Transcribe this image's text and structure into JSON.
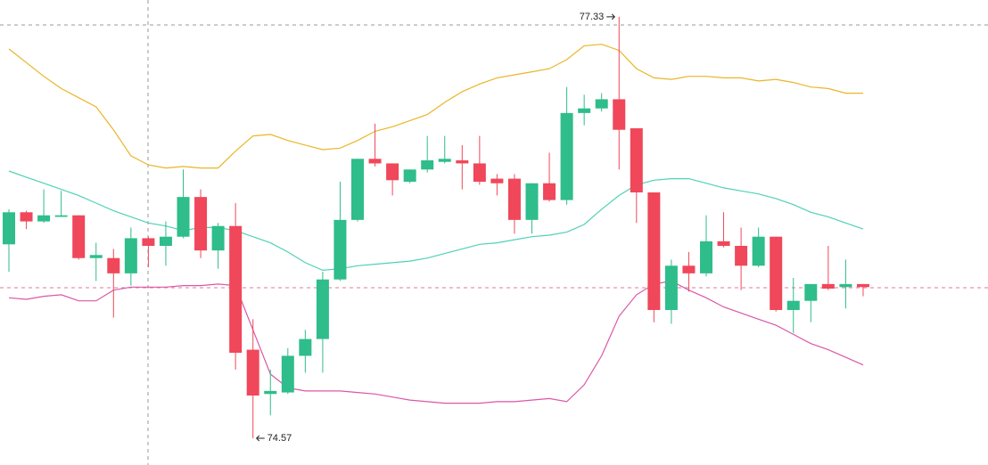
{
  "chart_data": {
    "type": "candlestick",
    "ylim": [
      74.395,
      77.44
    ],
    "up_color": "#2ebd8b",
    "down_color": "#f0475a",
    "open": [
      75.84,
      76.05,
      75.99,
      76.02,
      76.03,
      75.75,
      75.75,
      75.65,
      75.88,
      75.83,
      75.89,
      76.15,
      75.8,
      75.96,
      75.15,
      74.86,
      74.87,
      75.11,
      75.22,
      75.61,
      76.0,
      76.4,
      76.37,
      76.25,
      76.33,
      76.38,
      76.39,
      76.37,
      76.27,
      76.27,
      76.0,
      76.24,
      76.13,
      76.7,
      76.73,
      76.79,
      76.6,
      76.18,
      75.41,
      75.7,
      75.65,
      75.86,
      75.83,
      75.7,
      75.89,
      75.41,
      75.47,
      75.58,
      75.56,
      75.58
    ],
    "high": [
      76.07,
      76.06,
      76.2,
      76.19,
      76.03,
      75.85,
      75.81,
      75.95,
      75.89,
      75.99,
      76.33,
      76.2,
      75.98,
      76.11,
      75.35,
      75.02,
      75.16,
      75.28,
      75.66,
      76.25,
      76.4,
      76.63,
      76.37,
      76.33,
      76.55,
      76.55,
      76.49,
      76.55,
      76.3,
      76.3,
      76.24,
      76.44,
      76.87,
      76.82,
      76.83,
      77.33,
      76.6,
      76.18,
      75.74,
      75.79,
      76.03,
      76.05,
      75.95,
      75.95,
      75.89,
      75.62,
      75.58,
      75.83,
      75.74,
      75.58
    ],
    "low": [
      75.66,
      75.94,
      75.98,
      76.02,
      75.74,
      75.6,
      75.36,
      75.57,
      75.69,
      75.7,
      75.88,
      75.75,
      75.68,
      75.02,
      74.57,
      74.72,
      74.86,
      75.0,
      75.0,
      75.6,
      75.99,
      76.35,
      76.16,
      76.24,
      76.31,
      76.37,
      76.2,
      76.23,
      76.16,
      75.91,
      75.91,
      76.12,
      76.1,
      76.62,
      76.71,
      76.33,
      75.98,
      75.33,
      75.32,
      75.53,
      75.63,
      75.82,
      75.54,
      75.69,
      75.4,
      75.26,
      75.33,
      75.54,
      75.42,
      75.5
    ],
    "close": [
      76.05,
      75.99,
      76.03,
      76.03,
      75.75,
      75.77,
      75.65,
      75.88,
      75.83,
      75.89,
      76.15,
      75.8,
      75.96,
      75.13,
      74.85,
      74.88,
      75.11,
      75.22,
      75.61,
      76.0,
      76.4,
      76.37,
      76.26,
      76.33,
      76.39,
      76.4,
      76.37,
      76.25,
      76.24,
      76.0,
      76.24,
      76.13,
      76.7,
      76.73,
      76.79,
      76.59,
      76.18,
      75.41,
      75.7,
      75.65,
      75.86,
      75.83,
      75.7,
      75.89,
      75.41,
      75.47,
      75.58,
      75.55,
      75.58,
      75.56
    ],
    "lines": [
      {
        "color": "#eab527",
        "values": [
          77.12,
          77.03,
          76.94,
          76.86,
          76.8,
          76.74,
          76.59,
          76.42,
          76.36,
          76.34,
          76.35,
          76.34,
          76.34,
          76.45,
          76.55,
          76.56,
          76.52,
          76.49,
          76.46,
          76.47,
          76.52,
          76.58,
          76.61,
          76.65,
          76.69,
          76.77,
          76.84,
          76.89,
          76.93,
          76.95,
          76.97,
          76.99,
          77.05,
          77.14,
          77.15,
          77.11,
          76.99,
          76.93,
          76.92,
          76.94,
          76.94,
          76.93,
          76.93,
          76.91,
          76.92,
          76.9,
          76.87,
          76.86,
          76.83,
          76.83
        ]
      },
      {
        "color": "#4fd1b5",
        "values": [
          76.32,
          76.28,
          76.24,
          76.2,
          76.16,
          76.11,
          76.06,
          76.02,
          75.98,
          75.96,
          75.93,
          75.95,
          75.95,
          75.93,
          75.89,
          75.85,
          75.79,
          75.72,
          75.67,
          75.68,
          75.7,
          75.71,
          75.72,
          75.73,
          75.75,
          75.78,
          75.81,
          75.84,
          75.85,
          75.87,
          75.89,
          75.9,
          75.92,
          75.97,
          76.07,
          76.16,
          76.23,
          76.26,
          76.27,
          76.27,
          76.24,
          76.21,
          76.19,
          76.17,
          76.14,
          76.1,
          76.05,
          76.02,
          75.98,
          75.94
        ]
      },
      {
        "color": "#db57a6",
        "values": [
          75.49,
          75.48,
          75.5,
          75.51,
          75.47,
          75.47,
          75.54,
          75.56,
          75.56,
          75.56,
          75.57,
          75.57,
          75.58,
          75.57,
          75.28,
          74.99,
          74.9,
          74.88,
          74.88,
          74.88,
          74.87,
          74.86,
          74.84,
          74.82,
          74.81,
          74.8,
          74.8,
          74.8,
          74.81,
          74.81,
          74.82,
          74.83,
          74.81,
          74.92,
          75.11,
          75.37,
          75.51,
          75.58,
          75.6,
          75.54,
          75.49,
          75.43,
          75.39,
          75.35,
          75.31,
          75.25,
          75.19,
          75.15,
          75.1,
          75.05
        ]
      }
    ],
    "annotations": [
      "77.33",
      "74.57"
    ]
  }
}
